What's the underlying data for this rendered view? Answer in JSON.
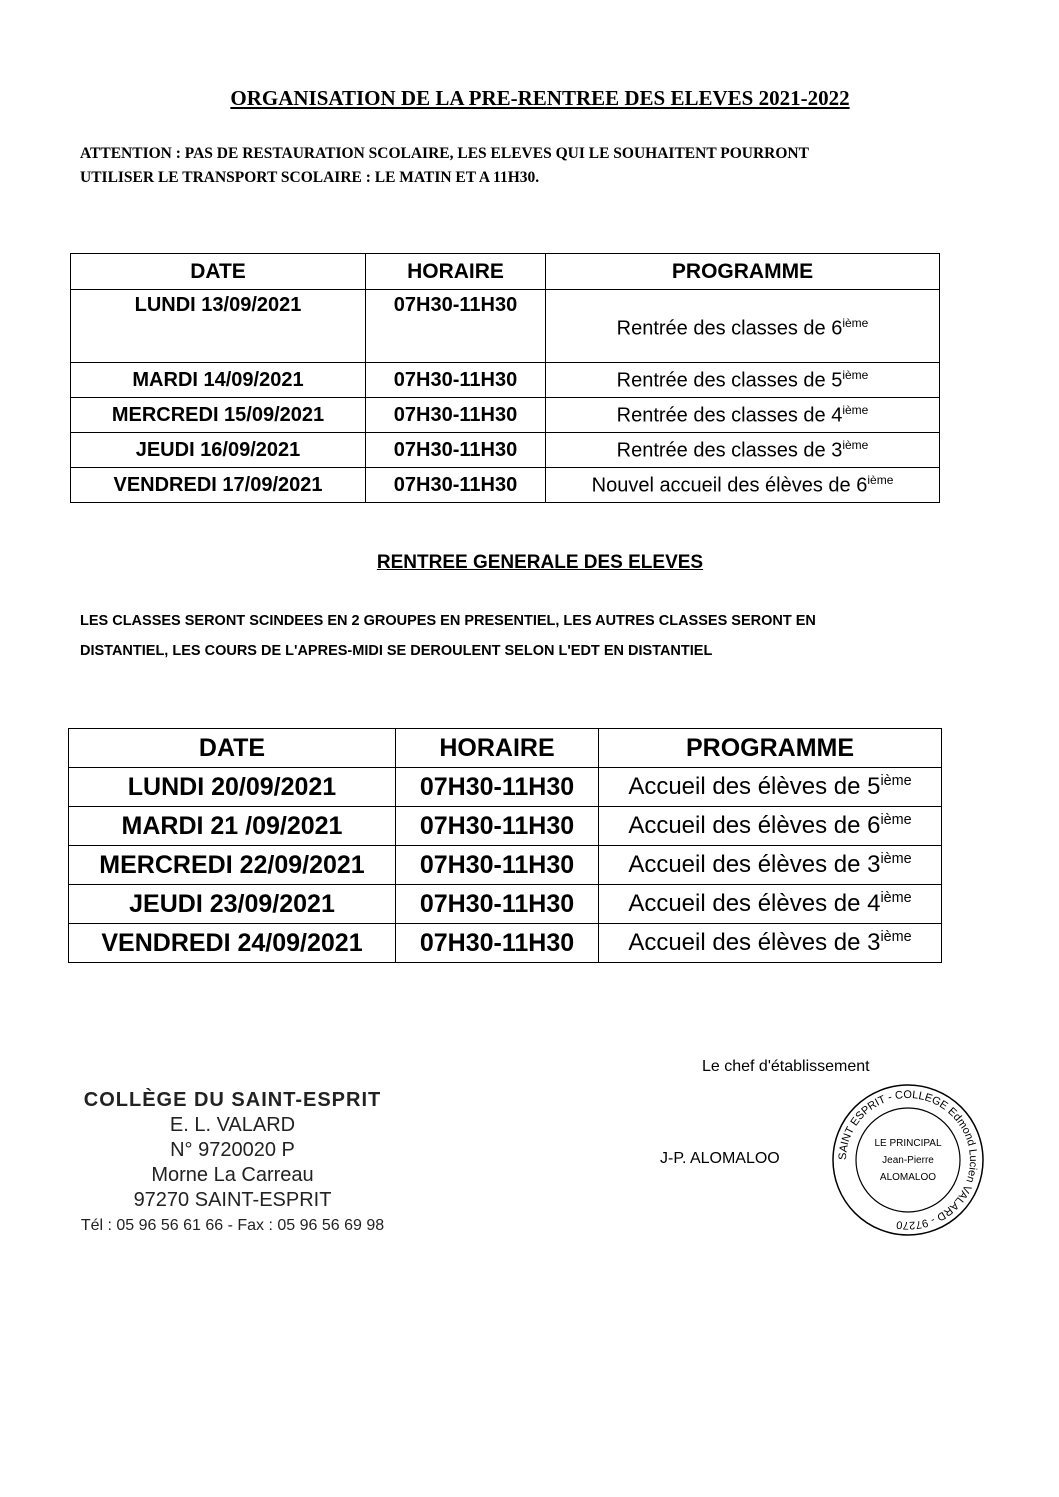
{
  "title": "ORGANISATION DE LA PRE-RENTREE DES ELEVES 2021-2022",
  "attention": [
    "ATTENTION : PAS DE RESTAURATION SCOLAIRE, LES ELEVES QUI LE SOUHAITENT POURRONT",
    "UTILISER LE TRANSPORT SCOLAIRE : LE MATIN ET A 11H30."
  ],
  "table1": {
    "headers": [
      "DATE",
      "HORAIRE",
      "PROGRAMME"
    ],
    "rows": [
      {
        "date": "LUNDI  13/09/2021",
        "horaire": "07H30-11H30",
        "programme": "Rentrée des classes de 6",
        "sup": "ième"
      },
      {
        "date": "MARDI 14/09/2021",
        "horaire": "07H30-11H30",
        "programme": "Rentrée des classes de 5",
        "sup": "ième"
      },
      {
        "date": "MERCREDI 15/09/2021",
        "horaire": "07H30-11H30",
        "programme": "Rentrée des classes de 4",
        "sup": "ième"
      },
      {
        "date": "JEUDI 16/09/2021",
        "horaire": "07H30-11H30",
        "programme": "Rentrée des classes de 3",
        "sup": "ième"
      },
      {
        "date": "VENDREDI 17/09/2021",
        "horaire": "07H30-11H30",
        "programme": "Nouvel accueil des élèves de 6",
        "sup": "ième"
      }
    ]
  },
  "section2": {
    "heading": "RENTREE GENERALE DES ELEVES",
    "paragraph": [
      "LES CLASSES SERONT SCINDEES EN 2 GROUPES EN PRESENTIEL, LES AUTRES CLASSES SERONT EN",
      "DISTANTIEL, LES COURS DE L'APRES-MIDI SE DEROULENT SELON L'EDT EN DISTANTIEL"
    ]
  },
  "table2": {
    "headers": [
      "DATE",
      "HORAIRE",
      "PROGRAMME"
    ],
    "rows": [
      {
        "date": "LUNDI  20/09/2021",
        "horaire": "07H30-11H30",
        "programme": "Accueil des élèves de 5",
        "sup": "ième"
      },
      {
        "date": "MARDI 21 /09/2021",
        "horaire": "07H30-11H30",
        "programme": "Accueil des élèves de 6",
        "sup": "ième"
      },
      {
        "date": "MERCREDI 22/09/2021",
        "horaire": "07H30-11H30",
        "programme": "Accueil des élèves de 3",
        "sup": "ième"
      },
      {
        "date": "JEUDI 23/09/2021",
        "horaire": "07H30-11H30",
        "programme": "Accueil des élèves de 4",
        "sup": "ième"
      },
      {
        "date": "VENDREDI 24/09/2021",
        "horaire": "07H30-11H30",
        "programme": "Accueil des élèves de 3",
        "sup": "ième"
      }
    ]
  },
  "school_stamp": {
    "name": "COLLÈGE DU SAINT-ESPRIT",
    "line2": "E. L. VALARD",
    "line3": "N° 9720020 P",
    "line4": "Morne La Carreau",
    "line5": "97270 SAINT-ESPRIT",
    "line6": "Tél : 05 96 56 61 66 - Fax : 05 96 56 69 98"
  },
  "signature": {
    "role": "Le chef d'établissement",
    "name": "J-P. ALOMALOO",
    "seal_ring": "SAINT ESPRIT - COLLEGE Edmond Lucien VALARD - 97270",
    "seal_center": [
      "LE PRINCIPAL",
      "Jean-Pierre",
      "ALOMALOO"
    ]
  }
}
